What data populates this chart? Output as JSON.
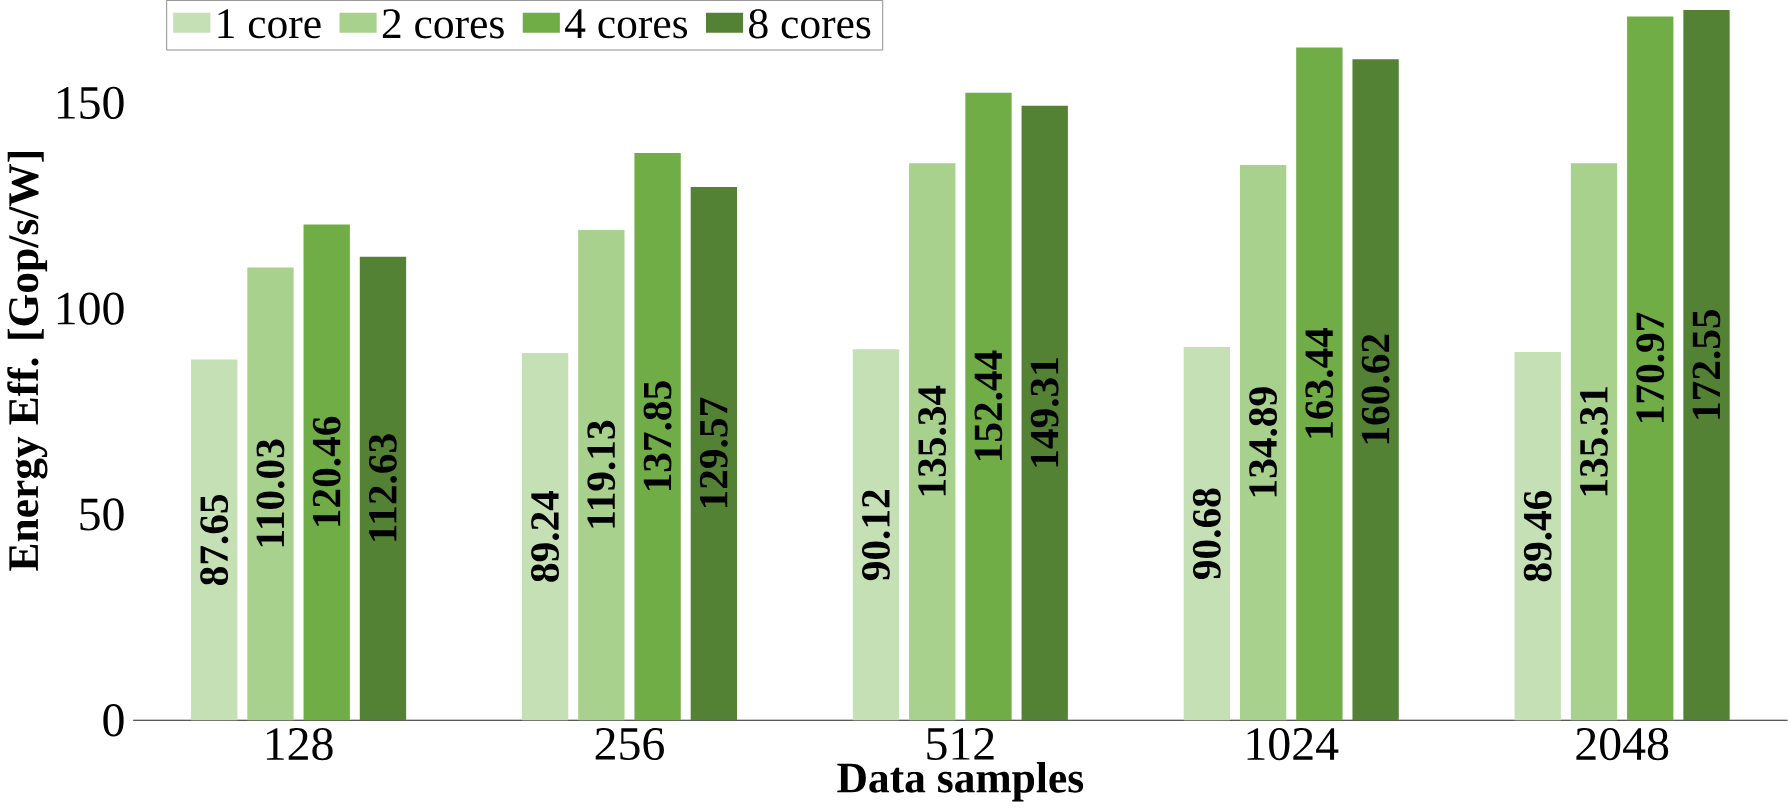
{
  "chart_data": {
    "type": "bar",
    "xlabel": "Data samples",
    "ylabel": "Energy Eff.  [Gop/s/W]",
    "categories": [
      "128",
      "256",
      "512",
      "1024",
      "2048"
    ],
    "series": [
      {
        "name": "1 core",
        "color": "#c5e0b4",
        "values": [
          87.65,
          89.24,
          90.12,
          90.68,
          89.46
        ]
      },
      {
        "name": "2 cores",
        "color": "#a9d18e",
        "values": [
          110.03,
          119.13,
          135.34,
          134.89,
          135.31
        ]
      },
      {
        "name": "4 cores",
        "color": "#70ad47",
        "values": [
          120.46,
          137.85,
          152.44,
          163.44,
          170.97
        ]
      },
      {
        "name": "8 cores",
        "color": "#548235",
        "values": [
          112.63,
          129.57,
          149.31,
          160.62,
          172.55
        ]
      }
    ],
    "ylim": [
      0,
      175
    ],
    "yticks": [
      0,
      50,
      100,
      150
    ],
    "data_labels": true,
    "legend": "top left"
  }
}
